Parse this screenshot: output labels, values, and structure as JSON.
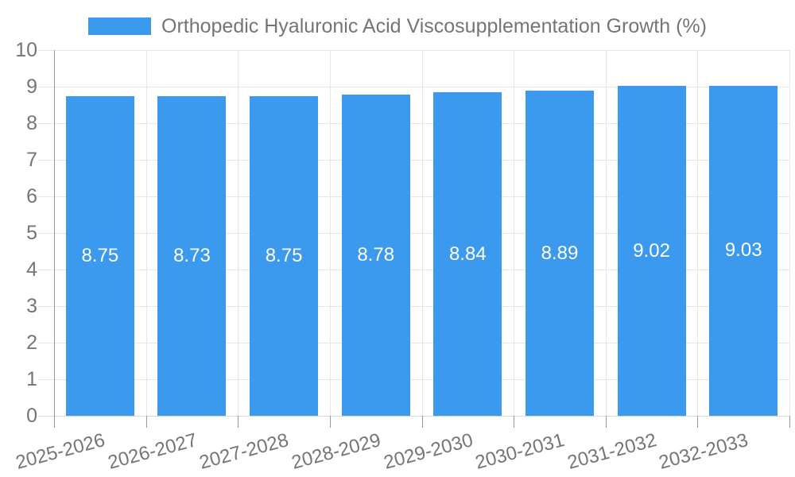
{
  "chart_data": {
    "type": "bar",
    "title": "Orthopedic Hyaluronic Acid Viscosupplementation Growth (%)",
    "categories": [
      "2025-2026",
      "2026-2027",
      "2027-2028",
      "2028-2029",
      "2029-2030",
      "2030-2031",
      "2031-2032",
      "2032-2033"
    ],
    "values": [
      8.75,
      8.73,
      8.75,
      8.78,
      8.84,
      8.89,
      9.02,
      9.03
    ],
    "value_label_decimals": 2,
    "ylim": [
      0,
      10
    ],
    "ytick_step": 1,
    "ytick_labels": [
      "0",
      "1",
      "2",
      "3",
      "4",
      "5",
      "6",
      "7",
      "8",
      "9",
      "10"
    ],
    "xlabel": "",
    "ylabel": "",
    "grid": true,
    "legend_position": "top",
    "x_tick_rotation_deg": -15
  },
  "colors": {
    "bar": "#3B99EE",
    "grid_line": "#E6E6E6",
    "baseline": "#D9D9D9",
    "axis_line": "#999999",
    "tick_mark": "#999999",
    "text": "#757575",
    "bar_value_label": "#FFFFFF",
    "background": "#FFFFFF"
  }
}
